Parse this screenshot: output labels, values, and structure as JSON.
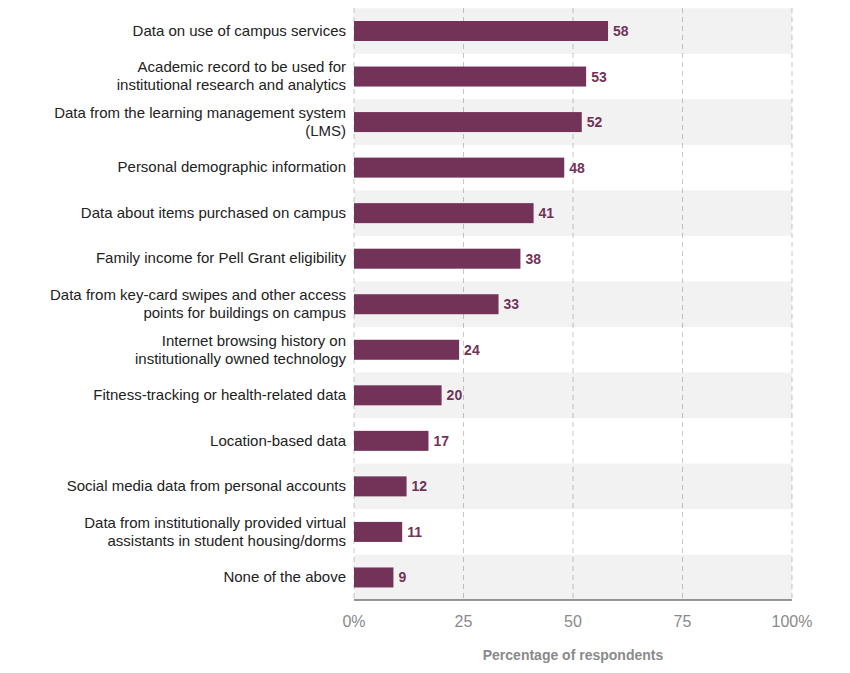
{
  "chart_data": {
    "type": "bar",
    "orientation": "horizontal",
    "categories": [
      "Data on use of campus services",
      "Academic record to be used for institutional research and analytics",
      "Data from the learning management system (LMS)",
      "Personal demographic information",
      "Data about items purchased on campus",
      "Family income for Pell Grant eligibility",
      "Data from key-card swipes and other access points for buildings on campus",
      "Internet browsing history on institutionally owned technology",
      "Fitness-tracking or health-related data",
      "Location-based data",
      "Social media data from personal accounts",
      "Data from institutionally provided virtual assistants in student housing/dorms",
      "None of the above"
    ],
    "values": [
      58,
      53,
      52,
      48,
      41,
      38,
      33,
      24,
      20,
      17,
      12,
      11,
      9
    ],
    "color": "#733359",
    "xlabel": "Percentage of respondents",
    "xlim": [
      0,
      100
    ],
    "xticks": [
      {
        "value": 0,
        "label": "0%"
      },
      25,
      50,
      75,
      {
        "value": 100,
        "label": "100%"
      }
    ],
    "grid": true,
    "data_labels": true
  }
}
